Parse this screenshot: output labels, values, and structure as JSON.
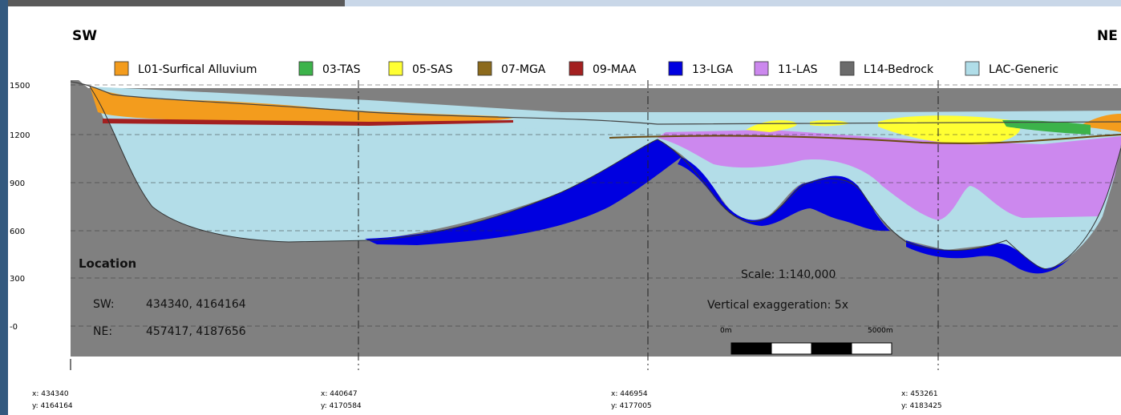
{
  "section": {
    "sw_label": "SW",
    "ne_label": "NE"
  },
  "legend": [
    {
      "label": "L01-Surfical Alluvium",
      "color": "#f39c1d"
    },
    {
      "label": "03-TAS",
      "color": "#3cb34a"
    },
    {
      "label": "05-SAS",
      "color": "#ffff33"
    },
    {
      "label": "07-MGA",
      "color": "#8c6a1c"
    },
    {
      "label": "09-MAA",
      "color": "#a32020"
    },
    {
      "label": "13-LGA",
      "color": "#0000e0"
    },
    {
      "label": "11-LAS",
      "color": "#cc88ee"
    },
    {
      "label": "L14-Bedrock",
      "color": "#6b6b6b"
    },
    {
      "label": "LAC-Generic",
      "color": "#b0dde8"
    }
  ],
  "y_ticks": [
    "1500",
    "1200",
    "900",
    "600",
    "300",
    "-0"
  ],
  "location": {
    "title": "Location",
    "sw_key": "SW:",
    "sw_value": "434340, 4164164",
    "ne_key": "NE:",
    "ne_value": "457417, 4187656"
  },
  "scale": {
    "text": "Scale: 1:140,000",
    "exaggeration": "Vertical exaggeration: 5x",
    "bar_start": "0m",
    "bar_end": "5000m"
  },
  "x_coords": [
    {
      "x": "x: 434340",
      "y": "y: 4164164"
    },
    {
      "x": "x: 440647",
      "y": "y: 4170584"
    },
    {
      "x": "x: 446954",
      "y": "y: 4177005"
    },
    {
      "x": "x: 453261",
      "y": "y: 4183425"
    }
  ]
}
